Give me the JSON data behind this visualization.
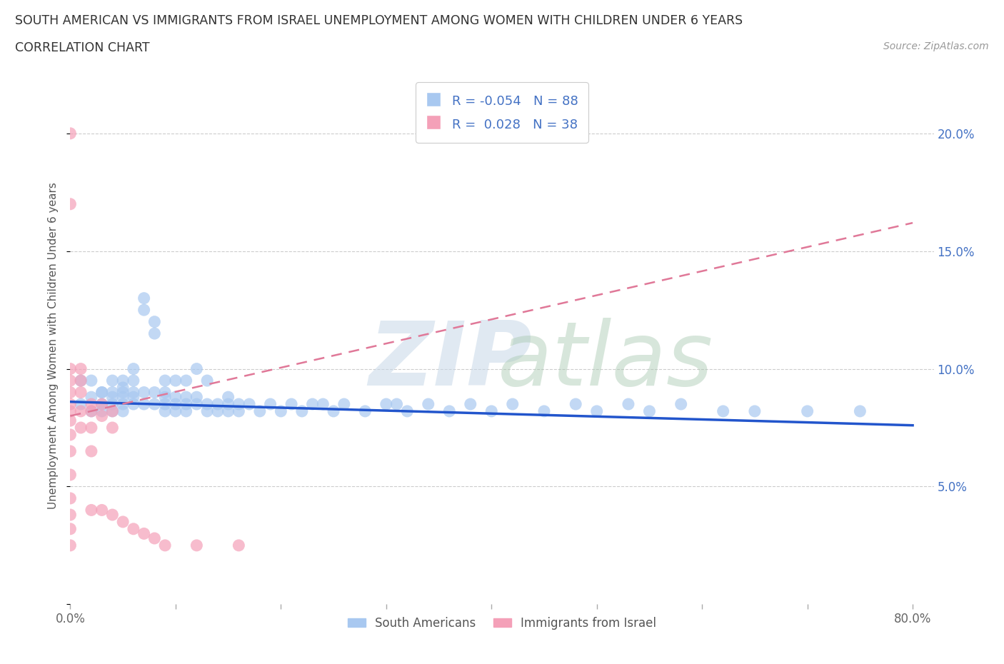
{
  "title_line1": "SOUTH AMERICAN VS IMMIGRANTS FROM ISRAEL UNEMPLOYMENT AMONG WOMEN WITH CHILDREN UNDER 6 YEARS",
  "title_line2": "CORRELATION CHART",
  "source": "Source: ZipAtlas.com",
  "ylabel": "Unemployment Among Women with Children Under 6 years",
  "xlim": [
    0.0,
    0.82
  ],
  "ylim": [
    0.0,
    0.22
  ],
  "xticks": [
    0.0,
    0.1,
    0.2,
    0.3,
    0.4,
    0.5,
    0.6,
    0.7,
    0.8
  ],
  "yticks": [
    0.0,
    0.05,
    0.1,
    0.15,
    0.2
  ],
  "blue_R": -0.054,
  "blue_N": 88,
  "pink_R": 0.028,
  "pink_N": 38,
  "blue_color": "#A8C8F0",
  "pink_color": "#F4A0B8",
  "blue_line_color": "#2255CC",
  "pink_line_color": "#E07898",
  "blue_line_y0": 0.086,
  "blue_line_y1": 0.076,
  "pink_line_y0": 0.08,
  "pink_line_y1": 0.162,
  "legend_label_blue": "South Americans",
  "legend_label_pink": "Immigrants from Israel",
  "background_color": "#FFFFFF",
  "blue_x": [
    0.01,
    0.01,
    0.02,
    0.02,
    0.02,
    0.03,
    0.03,
    0.03,
    0.03,
    0.04,
    0.04,
    0.04,
    0.04,
    0.04,
    0.05,
    0.05,
    0.05,
    0.05,
    0.05,
    0.05,
    0.06,
    0.06,
    0.06,
    0.06,
    0.06,
    0.07,
    0.07,
    0.07,
    0.07,
    0.08,
    0.08,
    0.08,
    0.08,
    0.09,
    0.09,
    0.09,
    0.09,
    0.09,
    0.1,
    0.1,
    0.1,
    0.1,
    0.11,
    0.11,
    0.11,
    0.11,
    0.12,
    0.12,
    0.12,
    0.13,
    0.13,
    0.13,
    0.14,
    0.14,
    0.15,
    0.15,
    0.15,
    0.16,
    0.16,
    0.17,
    0.18,
    0.19,
    0.2,
    0.21,
    0.22,
    0.23,
    0.24,
    0.25,
    0.26,
    0.28,
    0.3,
    0.31,
    0.32,
    0.34,
    0.36,
    0.38,
    0.4,
    0.42,
    0.45,
    0.48,
    0.5,
    0.53,
    0.55,
    0.58,
    0.62,
    0.65,
    0.7,
    0.75
  ],
  "blue_y": [
    0.085,
    0.095,
    0.088,
    0.082,
    0.095,
    0.09,
    0.085,
    0.082,
    0.09,
    0.088,
    0.085,
    0.095,
    0.082,
    0.09,
    0.095,
    0.09,
    0.085,
    0.082,
    0.088,
    0.092,
    0.095,
    0.09,
    0.1,
    0.085,
    0.088,
    0.13,
    0.125,
    0.085,
    0.09,
    0.12,
    0.115,
    0.09,
    0.085,
    0.085,
    0.09,
    0.082,
    0.095,
    0.088,
    0.085,
    0.088,
    0.095,
    0.082,
    0.085,
    0.095,
    0.082,
    0.088,
    0.085,
    0.088,
    0.1,
    0.085,
    0.095,
    0.082,
    0.085,
    0.082,
    0.085,
    0.082,
    0.088,
    0.085,
    0.082,
    0.085,
    0.082,
    0.085,
    0.082,
    0.085,
    0.082,
    0.085,
    0.085,
    0.082,
    0.085,
    0.082,
    0.085,
    0.085,
    0.082,
    0.085,
    0.082,
    0.085,
    0.082,
    0.085,
    0.082,
    0.085,
    0.082,
    0.085,
    0.082,
    0.085,
    0.082,
    0.082,
    0.082,
    0.082
  ],
  "pink_x": [
    0.0,
    0.0,
    0.0,
    0.0,
    0.0,
    0.0,
    0.0,
    0.0,
    0.0,
    0.0,
    0.0,
    0.0,
    0.0,
    0.0,
    0.0,
    0.01,
    0.01,
    0.01,
    0.01,
    0.01,
    0.02,
    0.02,
    0.02,
    0.02,
    0.02,
    0.03,
    0.03,
    0.03,
    0.04,
    0.04,
    0.04,
    0.05,
    0.06,
    0.07,
    0.08,
    0.09,
    0.12,
    0.16
  ],
  "pink_y": [
    0.2,
    0.17,
    0.1,
    0.095,
    0.09,
    0.085,
    0.082,
    0.078,
    0.072,
    0.065,
    0.055,
    0.045,
    0.038,
    0.032,
    0.025,
    0.1,
    0.095,
    0.09,
    0.082,
    0.075,
    0.085,
    0.082,
    0.075,
    0.065,
    0.04,
    0.085,
    0.08,
    0.04,
    0.082,
    0.075,
    0.038,
    0.035,
    0.032,
    0.03,
    0.028,
    0.025,
    0.025,
    0.025
  ]
}
